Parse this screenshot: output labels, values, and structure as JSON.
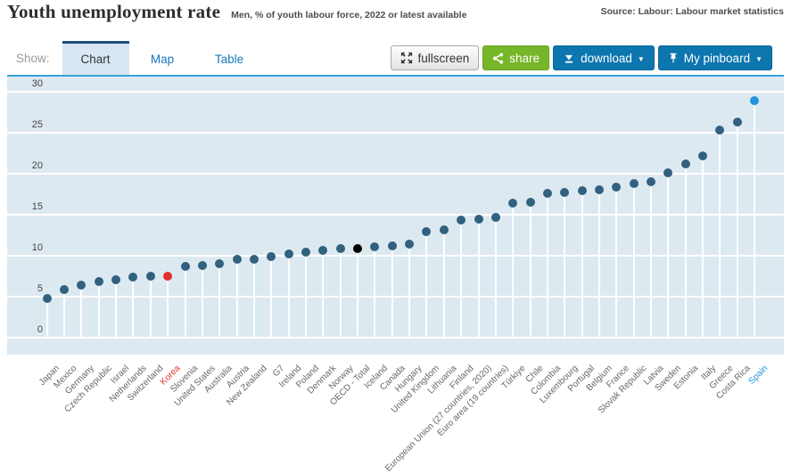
{
  "header": {
    "title": "Youth unemployment rate",
    "subtitle": "Men, % of youth labour force, 2022 or latest available",
    "source": "Source: Labour: Labour market statistics"
  },
  "toolbar": {
    "show_label": "Show:",
    "tabs": [
      {
        "label": "Chart",
        "active": true
      },
      {
        "label": "Map",
        "active": false
      },
      {
        "label": "Table",
        "active": false
      }
    ],
    "buttons": {
      "fullscreen": "fullscreen",
      "share": "share",
      "download": "download",
      "pinboard": "My pinboard",
      "caret": "▼"
    }
  },
  "colors": {
    "accent_blue": "#0d76ae",
    "share_green": "#76b629",
    "toolbar_line": "#35a3d7",
    "tab_active_bg": "#d8e7f3",
    "tab_active_border": "#1d4e79",
    "chart_bg": "#dde9f1"
  },
  "chart_data": {
    "type": "scatter",
    "title": "Youth unemployment rate",
    "subtitle": "Men, % of youth labour force, 2022 or latest available",
    "ylabel": "% of youth labour force",
    "ylim": [
      0,
      30
    ],
    "yticks": [
      0,
      5,
      10,
      15,
      20,
      25,
      30
    ],
    "grid": true,
    "legend": "none",
    "palette": {
      "default": "#31617f",
      "korea": "#e0312c",
      "oecd": "#000000",
      "spain": "#2196df",
      "label_default": "#666666"
    },
    "points": [
      {
        "label": "Japan",
        "value": 4.8
      },
      {
        "label": "Mexico",
        "value": 5.9
      },
      {
        "label": "Germany",
        "value": 6.4
      },
      {
        "label": "Czech Republic",
        "value": 6.9
      },
      {
        "label": "Israel",
        "value": 7.1
      },
      {
        "label": "Netherlands",
        "value": 7.4
      },
      {
        "label": "Switzerland",
        "value": 7.5
      },
      {
        "label": "Korea",
        "value": 7.5,
        "highlight": "korea"
      },
      {
        "label": "Slovenia",
        "value": 8.7
      },
      {
        "label": "United States",
        "value": 8.8
      },
      {
        "label": "Australia",
        "value": 9.0
      },
      {
        "label": "Austria",
        "value": 9.6
      },
      {
        "label": "New Zealand",
        "value": 9.6
      },
      {
        "label": "G7",
        "value": 9.9
      },
      {
        "label": "Ireland",
        "value": 10.2
      },
      {
        "label": "Poland",
        "value": 10.4
      },
      {
        "label": "Denmark",
        "value": 10.6
      },
      {
        "label": "Norway",
        "value": 10.9
      },
      {
        "label": "OECD - Total",
        "value": 10.9,
        "highlight": "oecd"
      },
      {
        "label": "Iceland",
        "value": 11.1
      },
      {
        "label": "Canada",
        "value": 11.2
      },
      {
        "label": "Hungary",
        "value": 11.4
      },
      {
        "label": "United Kingdom",
        "value": 12.9
      },
      {
        "label": "Lithuania",
        "value": 13.1
      },
      {
        "label": "Finland",
        "value": 14.4
      },
      {
        "label": "European Union (27 countries, 2020)",
        "value": 14.5
      },
      {
        "label": "Euro area (19 countries)",
        "value": 14.7
      },
      {
        "label": "Türkiye",
        "value": 16.4
      },
      {
        "label": "Chile",
        "value": 16.5
      },
      {
        "label": "Colombia",
        "value": 17.6
      },
      {
        "label": "Luxembourg",
        "value": 17.7
      },
      {
        "label": "Portugal",
        "value": 17.9
      },
      {
        "label": "Belgium",
        "value": 18.0
      },
      {
        "label": "France",
        "value": 18.4
      },
      {
        "label": "Slovak Republic",
        "value": 18.8
      },
      {
        "label": "Latvia",
        "value": 19.0
      },
      {
        "label": "Sweden",
        "value": 20.1
      },
      {
        "label": "Estonia",
        "value": 21.2
      },
      {
        "label": "Italy",
        "value": 22.2
      },
      {
        "label": "Greece",
        "value": 25.3
      },
      {
        "label": "Costa Rica",
        "value": 26.3
      },
      {
        "label": "Spain",
        "value": 28.9,
        "highlight": "spain"
      }
    ]
  }
}
